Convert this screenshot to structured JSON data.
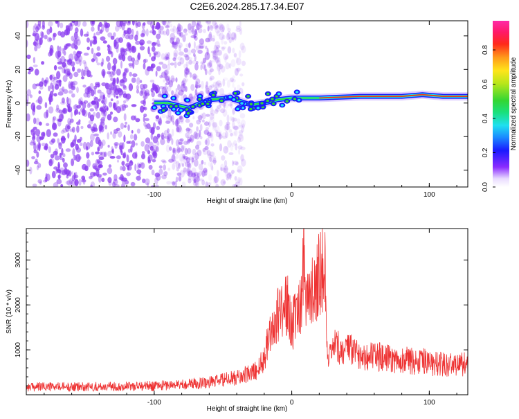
{
  "title": "C2E6.2024.285.17.34.E07",
  "chart_data": [
    {
      "type": "heatmap",
      "xlabel": "Height of straight line (km)",
      "ylabel": "Frequency (Hz)",
      "xlim": [
        -193,
        128
      ],
      "ylim": [
        -50,
        49
      ],
      "xticks": [
        -100,
        0,
        100
      ],
      "yticks": [
        -40,
        -20,
        0,
        20,
        40
      ],
      "colorbar": {
        "label": "Normalized spectral amplitude",
        "range": [
          0,
          0.97
        ],
        "ticks": [
          0.0,
          0.2,
          0.4,
          0.6,
          0.8
        ],
        "colormap": [
          "#f4eefc",
          "#7a2cff",
          "#1a1aff",
          "#1a8cff",
          "#1fe0f0",
          "#1ae07a",
          "#33d633",
          "#b5e61a",
          "#ffe51a",
          "#ff9a1a",
          "#ff2a1a",
          "#ff1a66",
          "#ff2aa8"
        ]
      },
      "features": {
        "noise_region_x": [
          -193,
          -60
        ],
        "noise_color": "#8a3cf0",
        "signal_ridge": [
          {
            "x": -100,
            "f": 0
          },
          {
            "x": -90,
            "f": 0
          },
          {
            "x": -75,
            "f": -3
          },
          {
            "x": -60,
            "f": 2
          },
          {
            "x": -45,
            "f": 3
          },
          {
            "x": -30,
            "f": -1
          },
          {
            "x": -20,
            "f": 0
          },
          {
            "x": -10,
            "f": 2
          },
          {
            "x": 0,
            "f": 3
          },
          {
            "x": 20,
            "f": 3
          },
          {
            "x": 50,
            "f": 4
          },
          {
            "x": 80,
            "f": 4
          },
          {
            "x": 95,
            "f": 5
          },
          {
            "x": 110,
            "f": 4
          },
          {
            "x": 128,
            "f": 4
          }
        ]
      }
    },
    {
      "type": "line",
      "xlabel": "Height of straight line (km)",
      "ylabel": "SNR (10 * v/v)",
      "xlim": [
        -193,
        128
      ],
      "ylim": [
        0,
        3700
      ],
      "xticks": [
        -100,
        0,
        100
      ],
      "yticks": [
        1000,
        2000,
        3000
      ],
      "line_color": "#ee3333",
      "series": [
        {
          "x": [
            -193,
            -180,
            -160,
            -140,
            -120,
            -100,
            -80,
            -60,
            -50,
            -40,
            -30,
            -25,
            -20,
            -18,
            -15,
            -12,
            -10,
            -8,
            -5,
            -3,
            0,
            3,
            5,
            7,
            8,
            9,
            10,
            12,
            15,
            18,
            20,
            22,
            24,
            25,
            26,
            30,
            40,
            50,
            60,
            70,
            80,
            90,
            95,
            100,
            110,
            120,
            128
          ],
          "y": [
            170,
            180,
            175,
            180,
            190,
            200,
            230,
            280,
            330,
            380,
            470,
            560,
            800,
            1200,
            1450,
            1600,
            1750,
            1950,
            2050,
            1950,
            1550,
            1700,
            1950,
            2200,
            2700,
            3650,
            2500,
            2050,
            2300,
            2550,
            2750,
            2850,
            2950,
            1500,
            650,
            1050,
            1000,
            900,
            850,
            800,
            780,
            740,
            760,
            690,
            680,
            670,
            690
          ]
        }
      ]
    }
  ]
}
